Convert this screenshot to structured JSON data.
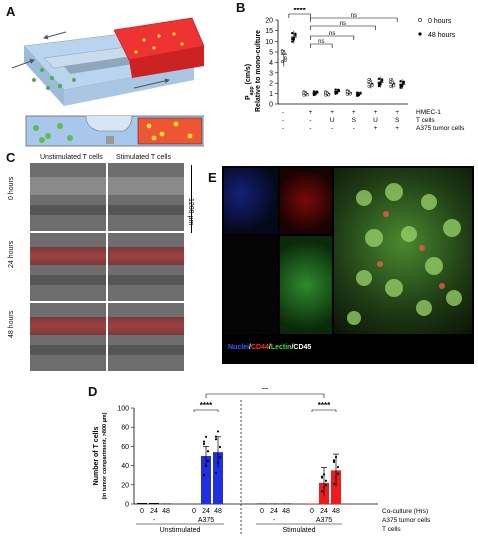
{
  "panels": {
    "A": {
      "letter": "A"
    },
    "B": {
      "letter": "B"
    },
    "C": {
      "letter": "C"
    },
    "D": {
      "letter": "D"
    },
    "E": {
      "letter": "E"
    }
  },
  "panel_c": {
    "col_headers": [
      "Unstimulated T cells",
      "Stimulated T cells"
    ],
    "row_labels": [
      "0 hours",
      "24 hours",
      "48 hours"
    ],
    "scale_label": "1200 µm"
  },
  "panel_e": {
    "legend_parts": [
      {
        "text": "Nuclei",
        "color": "#3a5bff"
      },
      {
        "text": "/",
        "color": "#ffffff"
      },
      {
        "text": "CD44",
        "color": "#ff3030"
      },
      {
        "text": "/",
        "color": "#ffffff"
      },
      {
        "text": "Lectin",
        "color": "#44dd44"
      },
      {
        "text": "/CD45",
        "color": "#ffffff"
      }
    ]
  },
  "chart_data": [
    {
      "id": "B",
      "type": "scatter",
      "ylabel_main": "P",
      "ylabel_sub": "app",
      "ylabel_unit": " (cm/s)",
      "ylabel_line2": "Relative to mono-culture",
      "yticks": [
        0,
        1,
        2,
        3,
        4,
        5,
        10,
        15,
        20
      ],
      "ylim": [
        0,
        20
      ],
      "legend": [
        {
          "name": "0 hours",
          "marker": "open-circle"
        },
        {
          "name": "48 hours",
          "marker": "filled-circle"
        }
      ],
      "row_labels": [
        "HMEC-1",
        "T cells",
        "A375 tumor cells"
      ],
      "rows": [
        [
          "-",
          "+",
          "+",
          "+",
          "+",
          "+",
          "+"
        ],
        [
          "-",
          "-",
          "U",
          "S",
          "U",
          "S",
          ""
        ],
        [
          "-",
          "-",
          "-",
          "-",
          "+",
          "+",
          ""
        ]
      ],
      "groups": [
        {
          "mean0": 4.8,
          "mean48": 12.0
        },
        {
          "mean0": 1.0,
          "mean48": 1.05
        },
        {
          "mean0": 1.0,
          "mean48": 1.2
        },
        {
          "mean0": 1.1,
          "mean48": 0.95
        },
        {
          "mean0": 2.0,
          "mean48": 2.1
        },
        {
          "mean0": 2.0,
          "mean48": 1.9
        }
      ],
      "significance": [
        {
          "label": "****"
        },
        {
          "label": "ns"
        },
        {
          "label": "ns"
        },
        {
          "label": "ns"
        },
        {
          "label": "ns"
        }
      ]
    },
    {
      "id": "D",
      "type": "bar",
      "ylabel": "Number of T cells",
      "ylabel2": "(in tumor compartment, >800 µm)",
      "yticks": [
        0,
        20,
        40,
        60,
        80,
        100
      ],
      "ylim": [
        0,
        100
      ],
      "x_title": "Co-culture (Hrs)",
      "x_tick_labels": [
        "0",
        "24",
        "48",
        "0",
        "24",
        "48",
        "0",
        "24",
        "48",
        "0",
        "24",
        "48"
      ],
      "a375_row": [
        "-",
        "A375",
        "-",
        "A375"
      ],
      "tcell_row": [
        "Unstimulated",
        "Stimulated"
      ],
      "row_titles": [
        "A375 tumor cells",
        "T cells"
      ],
      "series": [
        {
          "name": "Unstimulated",
          "color": "#1f2fe0",
          "values": [
            1,
            1,
            0.5,
            0.5,
            50,
            54
          ]
        },
        {
          "name": "Stimulated",
          "color": "#ee1c1c",
          "values": [
            0.5,
            0.5,
            0.5,
            0.5,
            22,
            35
          ]
        }
      ],
      "errors": [
        {
          "u": 60,
          "l": 40
        },
        {
          "u": 70,
          "l": 38
        },
        {
          "u": 38,
          "l": 8
        },
        {
          "u": 52,
          "l": 18
        }
      ],
      "significance": [
        {
          "label": "****"
        },
        {
          "label": "**"
        },
        {
          "label": "****"
        }
      ]
    }
  ]
}
